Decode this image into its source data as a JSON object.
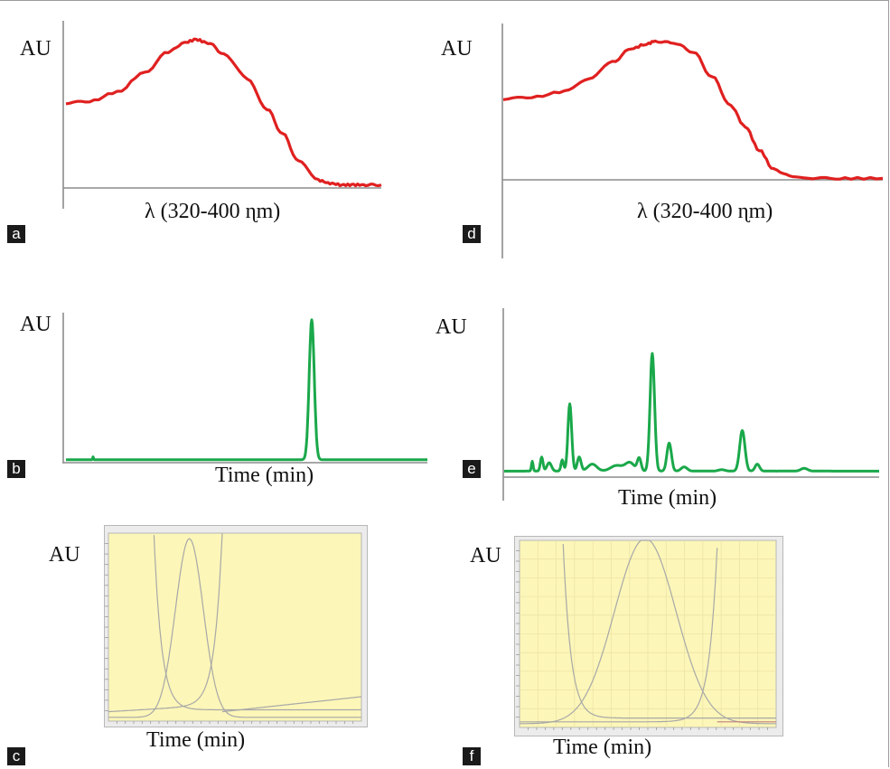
{
  "colors": {
    "spectrum": "#e02020",
    "chromatogram": "#1aa84a",
    "plot_bg": "#fcf6b8",
    "plot_border": "#b8b8b8",
    "trace": "#a8a8a8",
    "axis": "#8c8c8c"
  },
  "chart_data": [
    {
      "id": "a",
      "panel_label": "a",
      "type": "line",
      "ylabel": "AU",
      "xlabel": "λ (320-400 ɳm)",
      "xlim": [
        320,
        400
      ],
      "ylim": [
        0,
        1
      ],
      "series": [
        {
          "x": [
            320,
            326,
            333,
            340,
            346,
            350,
            353,
            356,
            360,
            366,
            371,
            375,
            379,
            384,
            387,
            390,
            393,
            396,
            400
          ],
          "values": [
            0.55,
            0.56,
            0.62,
            0.75,
            0.88,
            0.94,
            0.96,
            0.94,
            0.87,
            0.71,
            0.51,
            0.35,
            0.17,
            0.05,
            0.03,
            0.02,
            0.02,
            0.02,
            0.02
          ]
        }
      ]
    },
    {
      "id": "d",
      "panel_label": "d",
      "type": "line",
      "ylabel": "AU",
      "xlabel": "λ (320-400 ɳm)",
      "xlim": [
        320,
        400
      ],
      "ylim": [
        0,
        1
      ],
      "series": [
        {
          "x": [
            320,
            326,
            333,
            338,
            343,
            347,
            350,
            352,
            356,
            360,
            364,
            368,
            371,
            374,
            377,
            381,
            386,
            392,
            400
          ],
          "values": [
            0.55,
            0.56,
            0.6,
            0.68,
            0.8,
            0.89,
            0.92,
            0.94,
            0.93,
            0.87,
            0.7,
            0.5,
            0.36,
            0.2,
            0.07,
            0.02,
            0.01,
            0.01,
            0.01
          ]
        }
      ]
    },
    {
      "id": "b",
      "panel_label": "b",
      "type": "line",
      "ylabel": "AU",
      "xlabel": "Time (min)",
      "xlim": [
        0,
        100
      ],
      "ylim": [
        0,
        1
      ],
      "series": [
        {
          "baseline": 0.02,
          "peaks": [
            {
              "x": 68.0,
              "h": 0.95,
              "w": 0.7
            },
            {
              "x": 7.5,
              "h": 0.02,
              "w": 0.12
            }
          ]
        }
      ]
    },
    {
      "id": "e",
      "panel_label": "e",
      "type": "line",
      "ylabel": "AU",
      "xlabel": "Time (min)",
      "xlim": [
        0,
        100
      ],
      "ylim": [
        0,
        1
      ],
      "series": [
        {
          "baseline": 0.03,
          "peaks": [
            {
              "x": 7.5,
              "h": 0.07,
              "w": 0.22
            },
            {
              "x": 10.0,
              "h": 0.1,
              "w": 0.35
            },
            {
              "x": 12.0,
              "h": 0.06,
              "w": 0.6
            },
            {
              "x": 15.5,
              "h": 0.08,
              "w": 0.35
            },
            {
              "x": 17.5,
              "h": 0.48,
              "w": 0.5
            },
            {
              "x": 20.0,
              "h": 0.1,
              "w": 0.5
            },
            {
              "x": 23.5,
              "h": 0.05,
              "w": 1.2
            },
            {
              "x": 30.0,
              "h": 0.04,
              "w": 1.6
            },
            {
              "x": 33.5,
              "h": 0.06,
              "w": 1.2
            },
            {
              "x": 36.0,
              "h": 0.09,
              "w": 0.5
            },
            {
              "x": 39.5,
              "h": 0.84,
              "w": 0.6
            },
            {
              "x": 44.0,
              "h": 0.2,
              "w": 0.6
            },
            {
              "x": 48.0,
              "h": 0.03,
              "w": 0.8
            },
            {
              "x": 58.0,
              "h": 0.01,
              "w": 0.9
            },
            {
              "x": 63.5,
              "h": 0.29,
              "w": 0.7
            },
            {
              "x": 67.5,
              "h": 0.05,
              "w": 0.6
            },
            {
              "x": 80.0,
              "h": 0.02,
              "w": 0.9
            }
          ]
        }
      ]
    },
    {
      "id": "c",
      "panel_label": "c",
      "type": "line",
      "ylabel": "AU",
      "xlabel": "Time (min)",
      "xlim": [
        0,
        100
      ],
      "ylim": [
        0,
        1
      ],
      "series": [
        {
          "kind": "left-edge",
          "x0": 18.0,
          "decay": 3.0,
          "floor": 0.06
        },
        {
          "kind": "gaussian",
          "center": 32.0,
          "sigma": 5.5,
          "amp": 0.95,
          "floor": 0.02
        },
        {
          "kind": "right-edge",
          "x0": 45.0,
          "decay": 3.0,
          "floor": 0.05,
          "drift": 0.08
        }
      ]
    },
    {
      "id": "f",
      "panel_label": "f",
      "type": "line",
      "ylabel": "AU",
      "xlabel": "Time (min)",
      "xlim": [
        0,
        100
      ],
      "ylim": [
        0,
        1
      ],
      "series": [
        {
          "kind": "left-edge",
          "x0": 17.0,
          "decay": 3.0,
          "floor": 0.05
        },
        {
          "kind": "gaussian",
          "center": 49.0,
          "sigma": 12.0,
          "amp": 0.99,
          "floor": 0.02
        },
        {
          "kind": "right-edge",
          "x0": 77.0,
          "decay": 3.2,
          "floor": 0.03,
          "drift": 0.0
        }
      ]
    }
  ]
}
